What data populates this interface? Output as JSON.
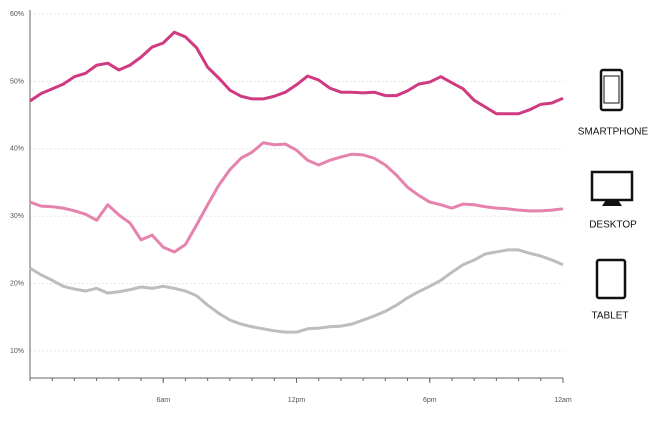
{
  "chart_data": {
    "type": "line",
    "x": [
      0,
      0.5,
      1,
      1.5,
      2,
      2.5,
      3,
      3.5,
      4,
      4.5,
      5,
      5.5,
      6,
      6.5,
      7,
      7.5,
      8,
      8.5,
      9,
      9.5,
      10,
      10.5,
      11,
      11.5,
      12,
      12.5,
      13,
      13.5,
      14,
      14.5,
      15,
      15.5,
      16,
      16.5,
      17,
      17.5,
      18,
      18.5,
      19,
      19.5,
      20,
      20.5,
      21,
      21.5,
      22,
      22.5,
      23,
      23.5,
      24
    ],
    "series": [
      {
        "name": "SMARTPHONE",
        "color": "#cf3a80",
        "values": [
          47.1,
          48.2,
          48.9,
          49.6,
          50.7,
          51.2,
          52.4,
          52.7,
          51.7,
          52.4,
          53.6,
          55.1,
          55.7,
          57.3,
          56.6,
          55,
          52.1,
          50.5,
          48.7,
          47.8,
          47.4,
          47.4,
          47.8,
          48.4,
          49.5,
          50.8,
          50.2,
          49,
          48.4,
          48.4,
          48.3,
          48.4,
          47.9,
          47.9,
          48.6,
          49.6,
          49.9,
          50.7,
          49.8,
          48.9,
          47.2,
          46.2,
          45.2,
          45.2,
          45.2,
          45.8,
          46.6,
          46.8,
          47.5
        ]
      },
      {
        "name": "DESKTOP",
        "color": "#e583ae",
        "values": [
          32.1,
          31.5,
          31.4,
          31.2,
          30.8,
          30.3,
          29.4,
          31.7,
          30.2,
          29,
          26.5,
          27.2,
          25.4,
          24.7,
          25.8,
          28.7,
          31.7,
          34.6,
          36.9,
          38.6,
          39.5,
          40.9,
          40.6,
          40.7,
          39.8,
          38.3,
          37.6,
          38.3,
          38.8,
          39.2,
          39.1,
          38.6,
          37.6,
          36.1,
          34.3,
          33.1,
          32.1,
          31.7,
          31.2,
          31.8,
          31.7,
          31.4,
          31.2,
          31.1,
          30.9,
          30.8,
          30.8,
          30.9,
          31.1
        ]
      },
      {
        "name": "TABLET",
        "color": "#bdbdbd",
        "values": [
          22.3,
          21.3,
          20.5,
          19.6,
          19.2,
          18.9,
          19.3,
          18.6,
          18.8,
          19.1,
          19.5,
          19.3,
          19.6,
          19.3,
          18.9,
          18.2,
          16.8,
          15.6,
          14.6,
          14,
          13.6,
          13.3,
          13,
          12.8,
          12.8,
          13.3,
          13.4,
          13.6,
          13.7,
          14,
          14.6,
          15.2,
          15.9,
          16.8,
          17.9,
          18.8,
          19.6,
          20.5,
          21.7,
          22.8,
          23.5,
          24.4,
          24.7,
          25,
          25,
          24.5,
          24.1,
          23.5,
          22.8
        ]
      }
    ],
    "xlim": [
      0,
      24
    ],
    "xticks": [
      {
        "value": 6,
        "label": "6am"
      },
      {
        "value": 12,
        "label": "12pm"
      },
      {
        "value": 18,
        "label": "6pm"
      },
      {
        "value": 24,
        "label": "12am"
      }
    ],
    "ylim": [
      6,
      60
    ],
    "yticks": [
      {
        "value": 10,
        "label": "10%"
      },
      {
        "value": 20,
        "label": "20%"
      },
      {
        "value": 30,
        "label": "30%"
      },
      {
        "value": 40,
        "label": "40%"
      },
      {
        "value": 50,
        "label": "50%"
      },
      {
        "value": 60,
        "label": "60%"
      }
    ],
    "grid": true
  }
}
